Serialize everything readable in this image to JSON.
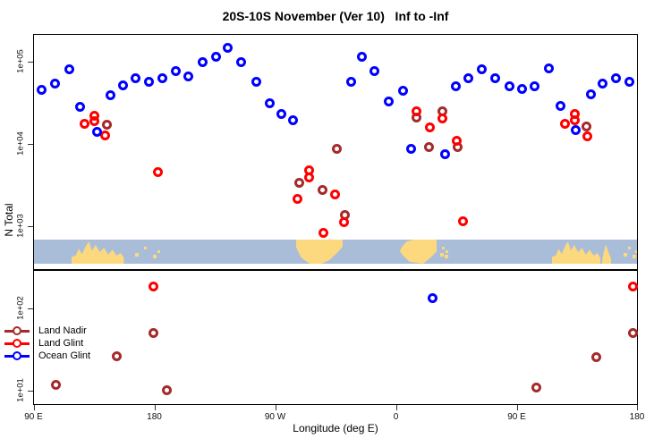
{
  "title": "20S-10S November (Ver 10)   Inf to -Inf",
  "x_axis_title": "Longitude (deg E)",
  "y_axis_title": "N Total",
  "legend": {
    "items": [
      {
        "label": "Land Nadir",
        "color": "#A52A2A"
      },
      {
        "label": "Land Glint",
        "color": "#FF0000"
      },
      {
        "label": "Ocean Glint",
        "color": "#0000FF"
      }
    ]
  },
  "chart_data": {
    "type": "scatter",
    "title": "20S-10S November (Ver 10)   Inf to -Inf",
    "xlabel": "Longitude (deg E)",
    "ylabel": "N Total",
    "marker": "open-circle",
    "grid": false,
    "legend_position": "bottom-left",
    "x_axis": {
      "unit": "deg E (wrapping 90E through 180, 90W, 0, 90E to 180)",
      "range": [
        90,
        540
      ],
      "ticks": [
        {
          "value": 90,
          "label": "90 E"
        },
        {
          "value": 180,
          "label": "180"
        },
        {
          "value": 270,
          "label": "90 W"
        },
        {
          "value": 360,
          "label": "0"
        },
        {
          "value": 450,
          "label": "90 E"
        },
        {
          "value": 540,
          "label": "180"
        }
      ]
    },
    "y_axis": {
      "scale": "log10",
      "range": [
        6.7,
        217000
      ],
      "ticks": [
        {
          "value": 100000,
          "label": "1e+05"
        },
        {
          "value": 10000,
          "label": "1e+04"
        },
        {
          "value": 1000,
          "label": "1e+03"
        },
        {
          "value": 100,
          "label": "1e+02"
        },
        {
          "value": 10,
          "label": "1e+01"
        }
      ]
    },
    "panel_split_value": 308,
    "map_strip": {
      "ocean_color": "#A9BDD9",
      "land_color": "#FCD87F",
      "value_range": [
        358,
        705
      ],
      "land_patches": [
        {
          "name": "australia",
          "lon": [
            118,
            157
          ],
          "shape": "peaks"
        },
        {
          "name": "islands-west",
          "lon": [
            162,
            184
          ],
          "shape": "dots"
        },
        {
          "name": "south-america",
          "lon": [
            285,
            320
          ],
          "shape": "block-taper"
        },
        {
          "name": "africa",
          "lon": [
            362,
            390
          ],
          "shape": "block-round"
        },
        {
          "name": "madagascar",
          "lon": [
            392,
            397
          ],
          "shape": "dots"
        },
        {
          "name": "australia-2",
          "lon": [
            476,
            512
          ],
          "shape": "peaks"
        },
        {
          "name": "new-guinea",
          "lon": [
            513,
            520
          ],
          "shape": "peaks-small"
        },
        {
          "name": "islands-east",
          "lon": [
            528,
            539
          ],
          "shape": "dots"
        }
      ]
    },
    "series": [
      {
        "name": "Land Nadir",
        "color": "#A52A2A",
        "points": [
          [
            144.3,
            17400
          ],
          [
            315.7,
            8900
          ],
          [
            287.7,
            3470
          ],
          [
            305,
            2800
          ],
          [
            321.7,
            1400
          ],
          [
            375,
            21200
          ],
          [
            394.3,
            25300
          ],
          [
            384.3,
            9500
          ],
          [
            405.7,
            9500
          ],
          [
            501.7,
            16800
          ],
          [
            179,
            52
          ],
          [
            151.7,
            27
          ],
          [
            106.3,
            12
          ],
          [
            189,
            10.3
          ],
          [
            536.3,
            52
          ],
          [
            509,
            26
          ],
          [
            464.3,
            11.3
          ]
        ]
      },
      {
        "name": "Land Glint",
        "color": "#FF0000",
        "points": [
          [
            127.7,
            18200
          ],
          [
            135,
            22800
          ],
          [
            135,
            19600
          ],
          [
            143,
            12900
          ],
          [
            182.3,
            4600
          ],
          [
            295,
            4840
          ],
          [
            295,
            4050
          ],
          [
            286.3,
            2180
          ],
          [
            314.3,
            2470
          ],
          [
            321,
            1160
          ],
          [
            305.7,
            860
          ],
          [
            375,
            25300
          ],
          [
            385,
            16100
          ],
          [
            394.3,
            20700
          ],
          [
            405,
            11300
          ],
          [
            409.7,
            1190
          ],
          [
            485.7,
            17800
          ],
          [
            493,
            23400
          ],
          [
            493,
            20000
          ],
          [
            502.3,
            12600
          ],
          [
            179,
            187
          ],
          [
            536.3,
            187
          ]
        ]
      },
      {
        "name": "Ocean Glint",
        "color": "#0000FF",
        "points": [
          [
            95.7,
            47000
          ],
          [
            105.7,
            55000
          ],
          [
            116.3,
            82000
          ],
          [
            124.3,
            29000
          ],
          [
            137,
            14500
          ],
          [
            147,
            40000
          ],
          [
            156.3,
            53000
          ],
          [
            165.7,
            65000
          ],
          [
            175.7,
            58000
          ],
          [
            185.7,
            65000
          ],
          [
            195.7,
            78000
          ],
          [
            205,
            67000
          ],
          [
            215.7,
            102000
          ],
          [
            225.7,
            119000
          ],
          [
            234.3,
            150000
          ],
          [
            244.3,
            100000
          ],
          [
            255.7,
            59000
          ],
          [
            265.7,
            32000
          ],
          [
            274.3,
            23500
          ],
          [
            283,
            20000
          ],
          [
            326.3,
            58000
          ],
          [
            334.3,
            119000
          ],
          [
            343.7,
            78000
          ],
          [
            354.3,
            34000
          ],
          [
            365,
            45000
          ],
          [
            371,
            8900
          ],
          [
            396.3,
            7600
          ],
          [
            404.3,
            52000
          ],
          [
            413.7,
            64000
          ],
          [
            423.7,
            82000
          ],
          [
            433.7,
            65000
          ],
          [
            444.3,
            52000
          ],
          [
            453.7,
            48000
          ],
          [
            463,
            52000
          ],
          [
            473.7,
            84000
          ],
          [
            482.3,
            30000
          ],
          [
            493.7,
            15000
          ],
          [
            505,
            41000
          ],
          [
            513.7,
            55000
          ],
          [
            523.7,
            65000
          ],
          [
            533.7,
            58000
          ],
          [
            387,
            138
          ]
        ]
      }
    ]
  }
}
